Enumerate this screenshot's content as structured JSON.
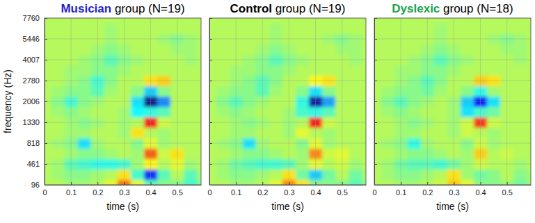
{
  "chart_data": [
    {
      "type": "heatmap",
      "title": "Musician group (N=19)",
      "xlabel": "time (s)",
      "ylabel": "frequency (Hz)",
      "xlim": [
        0,
        0.59
      ],
      "xticks": [
        0,
        0.1,
        0.2,
        0.3,
        0.4,
        0.5
      ],
      "ylim": [
        96,
        7760
      ],
      "yticks": [
        96,
        461,
        818,
        1330,
        2006,
        2780,
        4007,
        5446,
        7760
      ],
      "grid": true,
      "zlim": [
        -1,
        1
      ],
      "x": [
        0,
        0.05,
        0.1,
        0.15,
        0.2,
        0.25,
        0.3,
        0.35,
        0.4,
        0.45,
        0.5,
        0.55,
        0.6
      ],
      "y": [
        96,
        278,
        461,
        640,
        818,
        1074,
        1330,
        1668,
        2006,
        2393,
        2780,
        3394,
        4007,
        4727,
        5446,
        6603,
        7760
      ],
      "z": [
        [
          0.1,
          0.1,
          0.05,
          0.05,
          0.1,
          0.2,
          0.55,
          0.2,
          -0.1,
          0.0,
          0.0,
          -0.15,
          0.0
        ],
        [
          0.1,
          0.05,
          0.0,
          0.0,
          0.05,
          0.1,
          0.3,
          -0.15,
          -0.7,
          -0.1,
          0.1,
          -0.1,
          0.05
        ],
        [
          0.1,
          0.05,
          -0.1,
          -0.15,
          -0.2,
          -0.2,
          -0.15,
          0.05,
          0.25,
          0.1,
          0.2,
          0.05,
          0.1
        ],
        [
          0.1,
          0.1,
          0.05,
          0.0,
          0.0,
          0.05,
          0.1,
          0.05,
          0.6,
          0.15,
          0.3,
          0.1,
          0.1
        ],
        [
          0.1,
          0.05,
          0.0,
          -0.3,
          0.05,
          0.1,
          0.1,
          0.0,
          0.2,
          0.05,
          0.1,
          0.1,
          0.1
        ],
        [
          0.1,
          0.1,
          0.05,
          0.05,
          0.1,
          0.1,
          0.05,
          0.3,
          0.1,
          0.05,
          0.1,
          0.1,
          0.1
        ],
        [
          0.1,
          0.1,
          0.05,
          0.0,
          0.05,
          0.1,
          0.05,
          0.1,
          0.75,
          0.15,
          0.1,
          0.1,
          0.1
        ],
        [
          0.1,
          0.05,
          0.0,
          0.05,
          0.1,
          0.1,
          0.05,
          -0.25,
          -0.2,
          -0.1,
          0.1,
          0.1,
          0.1
        ],
        [
          0.1,
          0.0,
          -0.15,
          0.0,
          0.05,
          0.1,
          0.1,
          -0.3,
          -1.0,
          -0.5,
          0.1,
          0.1,
          0.1
        ],
        [
          0.1,
          0.05,
          0.0,
          0.0,
          -0.1,
          0.05,
          0.1,
          0.0,
          -0.35,
          0.0,
          0.1,
          0.1,
          0.1
        ],
        [
          0.1,
          0.1,
          0.05,
          0.0,
          -0.15,
          0.0,
          0.1,
          0.1,
          0.3,
          0.35,
          0.1,
          0.1,
          0.1
        ],
        [
          0.1,
          0.1,
          0.05,
          0.05,
          0.0,
          0.0,
          0.05,
          0.1,
          0.1,
          0.1,
          0.1,
          0.1,
          0.1
        ],
        [
          0.1,
          0.1,
          0.1,
          0.05,
          0.0,
          -0.1,
          0.0,
          0.05,
          0.1,
          0.1,
          0.1,
          0.05,
          0.1
        ],
        [
          0.1,
          0.1,
          0.1,
          0.1,
          0.05,
          0.0,
          0.05,
          0.1,
          0.1,
          0.1,
          0.05,
          0.05,
          0.1
        ],
        [
          0.1,
          0.1,
          0.1,
          0.1,
          0.1,
          0.05,
          0.1,
          0.1,
          0.1,
          0.05,
          0.0,
          0.05,
          0.1
        ],
        [
          0.1,
          0.1,
          0.1,
          0.1,
          0.1,
          0.05,
          0.1,
          0.1,
          0.1,
          0.1,
          0.1,
          0.1,
          0.1
        ],
        [
          0.1,
          0.1,
          0.1,
          0.1,
          0.1,
          0.1,
          0.1,
          0.1,
          0.1,
          0.1,
          0.1,
          0.1,
          0.1
        ]
      ]
    },
    {
      "type": "heatmap",
      "title": "Control group (N=19)",
      "xlabel": "time (s)",
      "xlim": [
        0,
        0.59
      ],
      "xticks": [
        0,
        0.1,
        0.2,
        0.3,
        0.4,
        0.5
      ],
      "ylim": [
        96,
        7760
      ],
      "yticks": [
        96,
        461,
        818,
        1330,
        2006,
        2780,
        4007,
        5446,
        7760
      ],
      "tick_labels": "x",
      "grid": true,
      "zlim": [
        -1,
        1
      ],
      "x": [
        0,
        0.05,
        0.1,
        0.15,
        0.2,
        0.25,
        0.3,
        0.35,
        0.4,
        0.45,
        0.5,
        0.55,
        0.6
      ],
      "y": [
        96,
        278,
        461,
        640,
        818,
        1074,
        1330,
        1668,
        2006,
        2393,
        2780,
        3394,
        4007,
        4727,
        5446,
        6603,
        7760
      ],
      "z": [
        [
          0.1,
          0.1,
          0.05,
          0.05,
          0.1,
          0.2,
          0.5,
          0.3,
          0.0,
          0.0,
          0.0,
          -0.1,
          0.0
        ],
        [
          0.1,
          0.05,
          0.0,
          0.0,
          0.05,
          0.1,
          0.3,
          -0.05,
          -0.35,
          -0.05,
          0.1,
          -0.05,
          0.05
        ],
        [
          0.1,
          0.05,
          -0.05,
          -0.1,
          -0.15,
          -0.15,
          -0.1,
          0.05,
          0.2,
          0.1,
          0.15,
          0.05,
          0.1
        ],
        [
          0.1,
          0.1,
          0.05,
          0.0,
          0.0,
          0.05,
          0.1,
          0.05,
          0.5,
          0.15,
          0.2,
          0.1,
          0.1
        ],
        [
          0.1,
          0.05,
          0.0,
          -0.3,
          0.05,
          0.1,
          0.1,
          0.0,
          0.2,
          0.05,
          0.1,
          0.1,
          0.1
        ],
        [
          0.1,
          0.1,
          0.05,
          0.05,
          0.1,
          0.1,
          0.05,
          0.2,
          0.1,
          0.05,
          0.1,
          0.1,
          0.1
        ],
        [
          0.1,
          0.1,
          0.05,
          0.0,
          0.05,
          0.1,
          0.05,
          0.1,
          0.75,
          0.15,
          0.1,
          0.1,
          0.1
        ],
        [
          0.1,
          0.05,
          0.0,
          0.05,
          0.1,
          0.1,
          0.05,
          -0.15,
          -0.2,
          -0.1,
          0.1,
          0.1,
          0.1
        ],
        [
          0.1,
          0.0,
          -0.1,
          0.0,
          0.05,
          0.1,
          0.1,
          -0.2,
          -0.95,
          -0.45,
          0.1,
          0.1,
          0.1
        ],
        [
          0.1,
          0.05,
          0.0,
          0.0,
          -0.1,
          0.05,
          0.1,
          0.0,
          -0.3,
          0.0,
          0.1,
          0.1,
          0.1
        ],
        [
          0.1,
          0.1,
          0.05,
          0.0,
          -0.1,
          0.0,
          0.1,
          0.1,
          0.25,
          0.3,
          0.1,
          0.1,
          0.1
        ],
        [
          0.1,
          0.1,
          0.05,
          0.05,
          0.0,
          0.0,
          0.05,
          0.1,
          0.1,
          0.1,
          0.1,
          0.1,
          0.1
        ],
        [
          0.1,
          0.1,
          0.1,
          0.05,
          0.0,
          -0.1,
          0.0,
          0.05,
          0.1,
          0.1,
          0.1,
          0.05,
          0.1
        ],
        [
          0.1,
          0.1,
          0.1,
          0.1,
          0.05,
          0.0,
          0.05,
          0.1,
          0.1,
          0.1,
          0.05,
          0.05,
          0.1
        ],
        [
          0.1,
          0.1,
          0.1,
          0.1,
          0.1,
          0.05,
          0.1,
          0.1,
          0.1,
          0.05,
          0.0,
          0.05,
          0.1
        ],
        [
          0.1,
          0.1,
          0.1,
          0.1,
          0.1,
          0.05,
          0.1,
          0.1,
          0.1,
          0.1,
          0.1,
          0.1,
          0.1
        ],
        [
          0.1,
          0.1,
          0.1,
          0.1,
          0.1,
          0.1,
          0.1,
          0.1,
          0.1,
          0.1,
          0.1,
          0.1,
          0.1
        ]
      ]
    },
    {
      "type": "heatmap",
      "title": "Dyslexic group (N=18)",
      "xlabel": "time (s)",
      "xlim": [
        0,
        0.59
      ],
      "xticks": [
        0,
        0.1,
        0.2,
        0.3,
        0.4,
        0.5
      ],
      "ylim": [
        96,
        7760
      ],
      "yticks": [
        96,
        461,
        818,
        1330,
        2006,
        2780,
        4007,
        5446,
        7760
      ],
      "tick_labels": "x",
      "grid": true,
      "zlim": [
        -1,
        1
      ],
      "x": [
        0,
        0.05,
        0.1,
        0.15,
        0.2,
        0.25,
        0.3,
        0.35,
        0.4,
        0.45,
        0.5,
        0.55,
        0.6
      ],
      "y": [
        96,
        278,
        461,
        640,
        818,
        1074,
        1330,
        1668,
        2006,
        2393,
        2780,
        3394,
        4007,
        4727,
        5446,
        6603,
        7760
      ],
      "z": [
        [
          0.1,
          0.1,
          0.05,
          0.05,
          0.1,
          0.15,
          0.35,
          0.2,
          0.0,
          0.0,
          0.05,
          -0.05,
          0.05
        ],
        [
          0.1,
          0.05,
          0.0,
          0.0,
          0.05,
          0.1,
          0.3,
          0.05,
          -0.05,
          0.0,
          0.1,
          0.0,
          0.05
        ],
        [
          0.1,
          0.05,
          -0.05,
          -0.1,
          -0.1,
          -0.15,
          -0.05,
          0.05,
          0.15,
          0.1,
          0.1,
          0.05,
          0.1
        ],
        [
          0.1,
          0.1,
          0.05,
          0.0,
          0.0,
          0.05,
          0.1,
          0.05,
          0.35,
          0.1,
          0.15,
          0.1,
          0.1
        ],
        [
          0.1,
          0.05,
          0.0,
          -0.2,
          0.05,
          0.1,
          0.1,
          0.0,
          0.15,
          0.05,
          0.1,
          0.1,
          0.1
        ],
        [
          0.1,
          0.1,
          0.05,
          0.05,
          0.1,
          0.1,
          0.05,
          0.15,
          0.1,
          0.05,
          0.1,
          0.1,
          0.1
        ],
        [
          0.1,
          0.1,
          0.05,
          0.0,
          0.05,
          0.1,
          0.05,
          0.15,
          0.7,
          0.15,
          0.1,
          0.1,
          0.1
        ],
        [
          0.1,
          0.05,
          0.0,
          0.05,
          0.1,
          0.1,
          0.05,
          -0.3,
          -0.15,
          -0.05,
          0.1,
          0.1,
          0.1
        ],
        [
          0.1,
          0.0,
          -0.1,
          0.0,
          0.05,
          0.1,
          0.05,
          -0.35,
          -0.75,
          -0.3,
          0.1,
          0.1,
          0.1
        ],
        [
          0.1,
          0.05,
          0.0,
          0.0,
          -0.05,
          0.05,
          0.1,
          0.0,
          -0.2,
          0.05,
          0.1,
          0.1,
          0.1
        ],
        [
          0.1,
          0.1,
          0.05,
          0.0,
          -0.1,
          0.0,
          0.1,
          0.1,
          0.35,
          0.3,
          0.1,
          0.1,
          0.1
        ],
        [
          0.1,
          0.1,
          0.05,
          0.05,
          0.0,
          0.0,
          0.05,
          0.1,
          0.1,
          0.1,
          0.1,
          0.1,
          0.1
        ],
        [
          0.1,
          0.1,
          0.1,
          0.05,
          0.0,
          -0.1,
          0.0,
          0.05,
          0.1,
          0.1,
          0.1,
          0.05,
          0.1
        ],
        [
          0.1,
          0.1,
          0.1,
          0.1,
          0.05,
          0.0,
          0.05,
          0.1,
          0.1,
          0.1,
          0.05,
          0.05,
          0.1
        ],
        [
          0.1,
          0.1,
          0.1,
          0.1,
          0.1,
          0.05,
          0.1,
          0.1,
          0.1,
          0.05,
          0.0,
          0.05,
          0.1
        ],
        [
          0.1,
          0.1,
          0.1,
          0.1,
          0.1,
          0.05,
          0.1,
          0.1,
          0.1,
          0.1,
          0.1,
          0.1,
          0.1
        ],
        [
          0.1,
          0.1,
          0.1,
          0.1,
          0.1,
          0.1,
          0.1,
          0.1,
          0.1,
          0.1,
          0.1,
          0.1,
          0.1
        ]
      ]
    }
  ]
}
